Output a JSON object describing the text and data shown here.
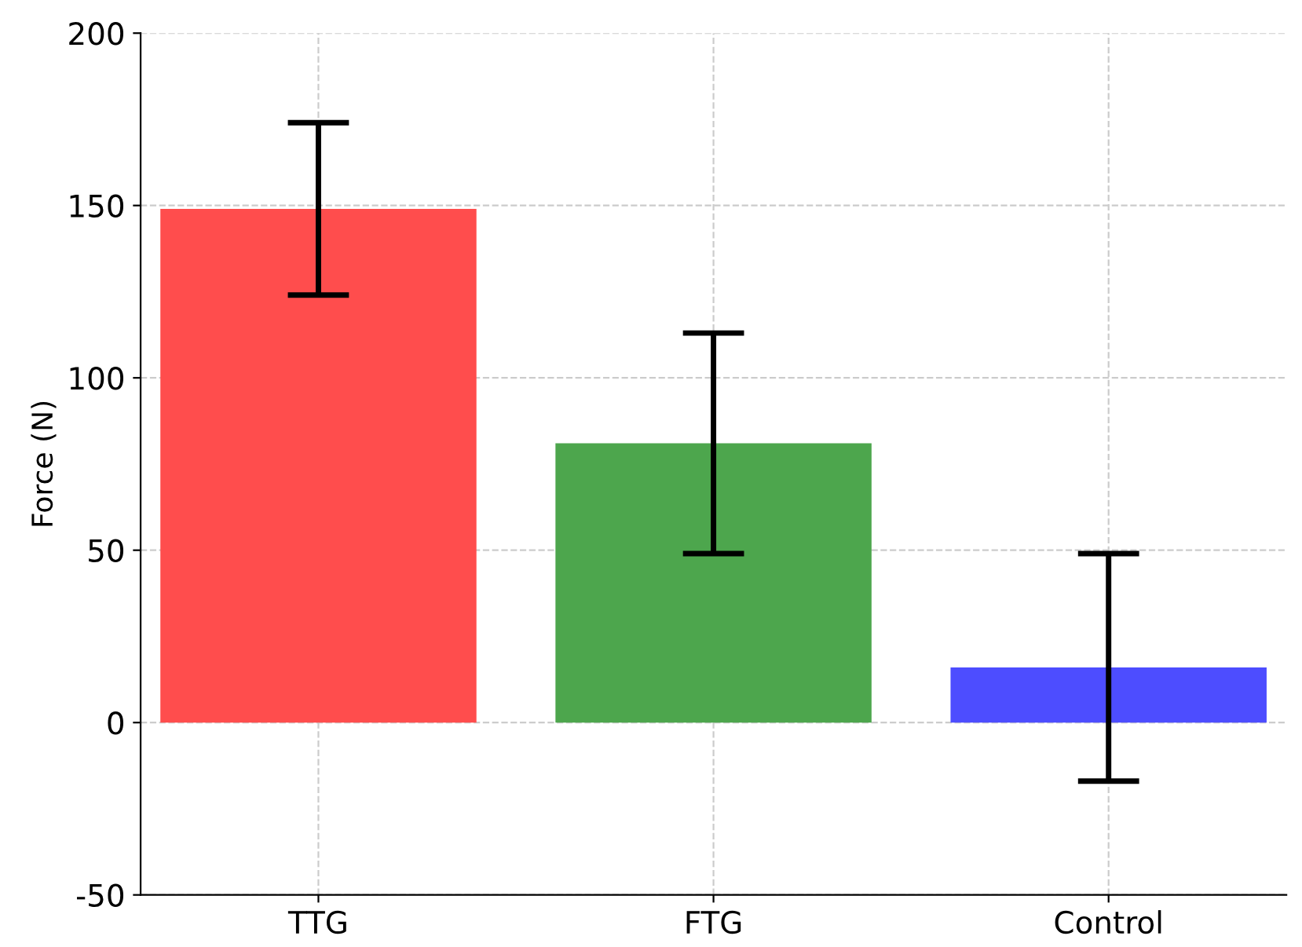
{
  "chart_data": {
    "type": "bar",
    "ylabel": "Force (N)",
    "categories": [
      "TTG",
      "FTG",
      "Control"
    ],
    "values": [
      149,
      81,
      16
    ],
    "errors": [
      25,
      32,
      33
    ],
    "colors": [
      "#ff4d4d",
      "#4da64d",
      "#4d4dff"
    ],
    "ylim": [
      -50,
      200
    ],
    "yticks": [
      -50,
      0,
      50,
      100,
      150,
      200
    ],
    "grid": true
  }
}
